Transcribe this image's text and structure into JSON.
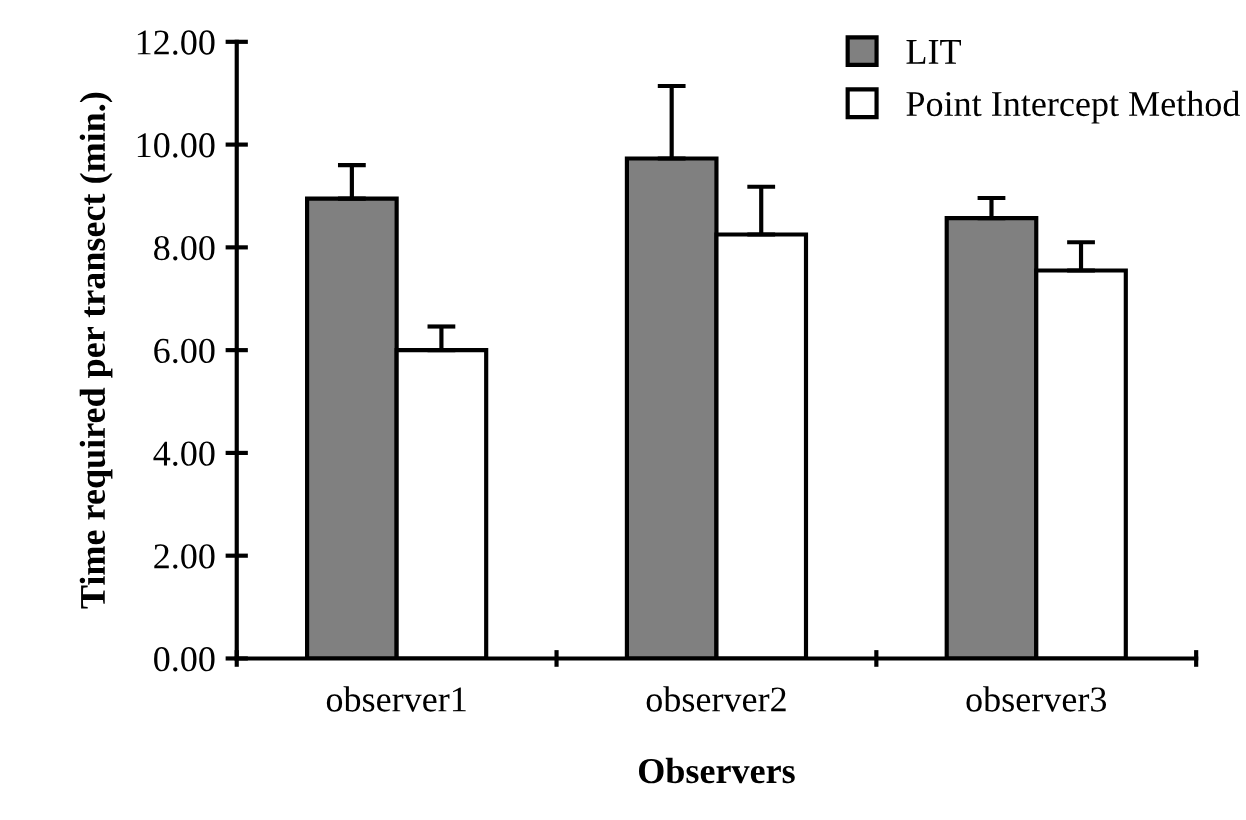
{
  "chart_data": {
    "type": "bar",
    "xlabel": "Observers",
    "ylabel": "Time required per transect (min.)",
    "categories": [
      "observer1",
      "observer2",
      "observer3"
    ],
    "series": [
      {
        "name": "LIT",
        "color": "#808080",
        "values": [
          8.95,
          9.73,
          8.57
        ],
        "errors": [
          [
            8.95,
            9.6
          ],
          [
            9.73,
            11.14
          ],
          [
            8.57,
            8.96
          ]
        ]
      },
      {
        "name": "Point Intercept Method",
        "color": "#ffffff",
        "values": [
          6.0,
          8.25,
          7.55
        ],
        "errors": [
          [
            6.0,
            6.46
          ],
          [
            8.25,
            9.18
          ],
          [
            7.55,
            8.1
          ]
        ]
      }
    ],
    "ylim": [
      0,
      12
    ],
    "yticks": [
      {
        "value": 0,
        "label": "0.00"
      },
      {
        "value": 2,
        "label": "2.00"
      },
      {
        "value": 4,
        "label": "4.00"
      },
      {
        "value": 6,
        "label": "6.00"
      },
      {
        "value": 8,
        "label": "8.00"
      },
      {
        "value": 10,
        "label": "10.00"
      },
      {
        "value": 12,
        "label": "12.00"
      }
    ],
    "grid": false,
    "legend": "top right"
  }
}
